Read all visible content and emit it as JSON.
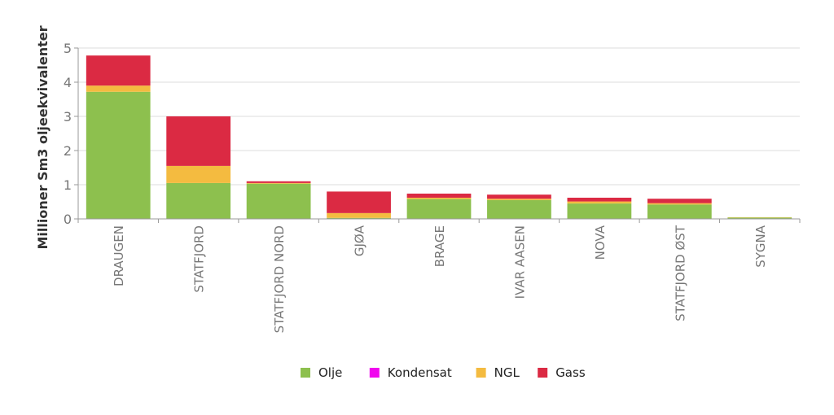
{
  "chart_data": {
    "type": "bar",
    "stacked": true,
    "title": "",
    "xlabel": "",
    "ylabel": "Millioner Sm3 oljeekvivalenter",
    "ylim": [
      0,
      5
    ],
    "yticks": [
      0,
      1,
      2,
      3,
      4,
      5
    ],
    "grid": true,
    "legend_position": "bottom-center",
    "categories": [
      "DRAUGEN",
      "STATFJORD",
      "STATFJORD NORD",
      "GJØA",
      "BRAGE",
      "IVAR AASEN",
      "NOVA",
      "STATFJORD ØST",
      "SYGNA"
    ],
    "series": [
      {
        "name": "Olje",
        "color": "#8DC04E",
        "values": [
          3.72,
          1.05,
          1.03,
          0.03,
          0.58,
          0.55,
          0.45,
          0.42,
          0.04
        ]
      },
      {
        "name": "Kondensat",
        "color": "#F007EE",
        "values": [
          0,
          0,
          0,
          0,
          0,
          0,
          0,
          0,
          0
        ]
      },
      {
        "name": "NGL",
        "color": "#F4BB40",
        "values": [
          0.18,
          0.5,
          0.02,
          0.14,
          0.04,
          0.04,
          0.06,
          0.04,
          0.01
        ]
      },
      {
        "name": "Gass",
        "color": "#DB2A43",
        "values": [
          0.88,
          1.45,
          0.05,
          0.63,
          0.12,
          0.12,
          0.11,
          0.13,
          0.0
        ]
      }
    ]
  }
}
